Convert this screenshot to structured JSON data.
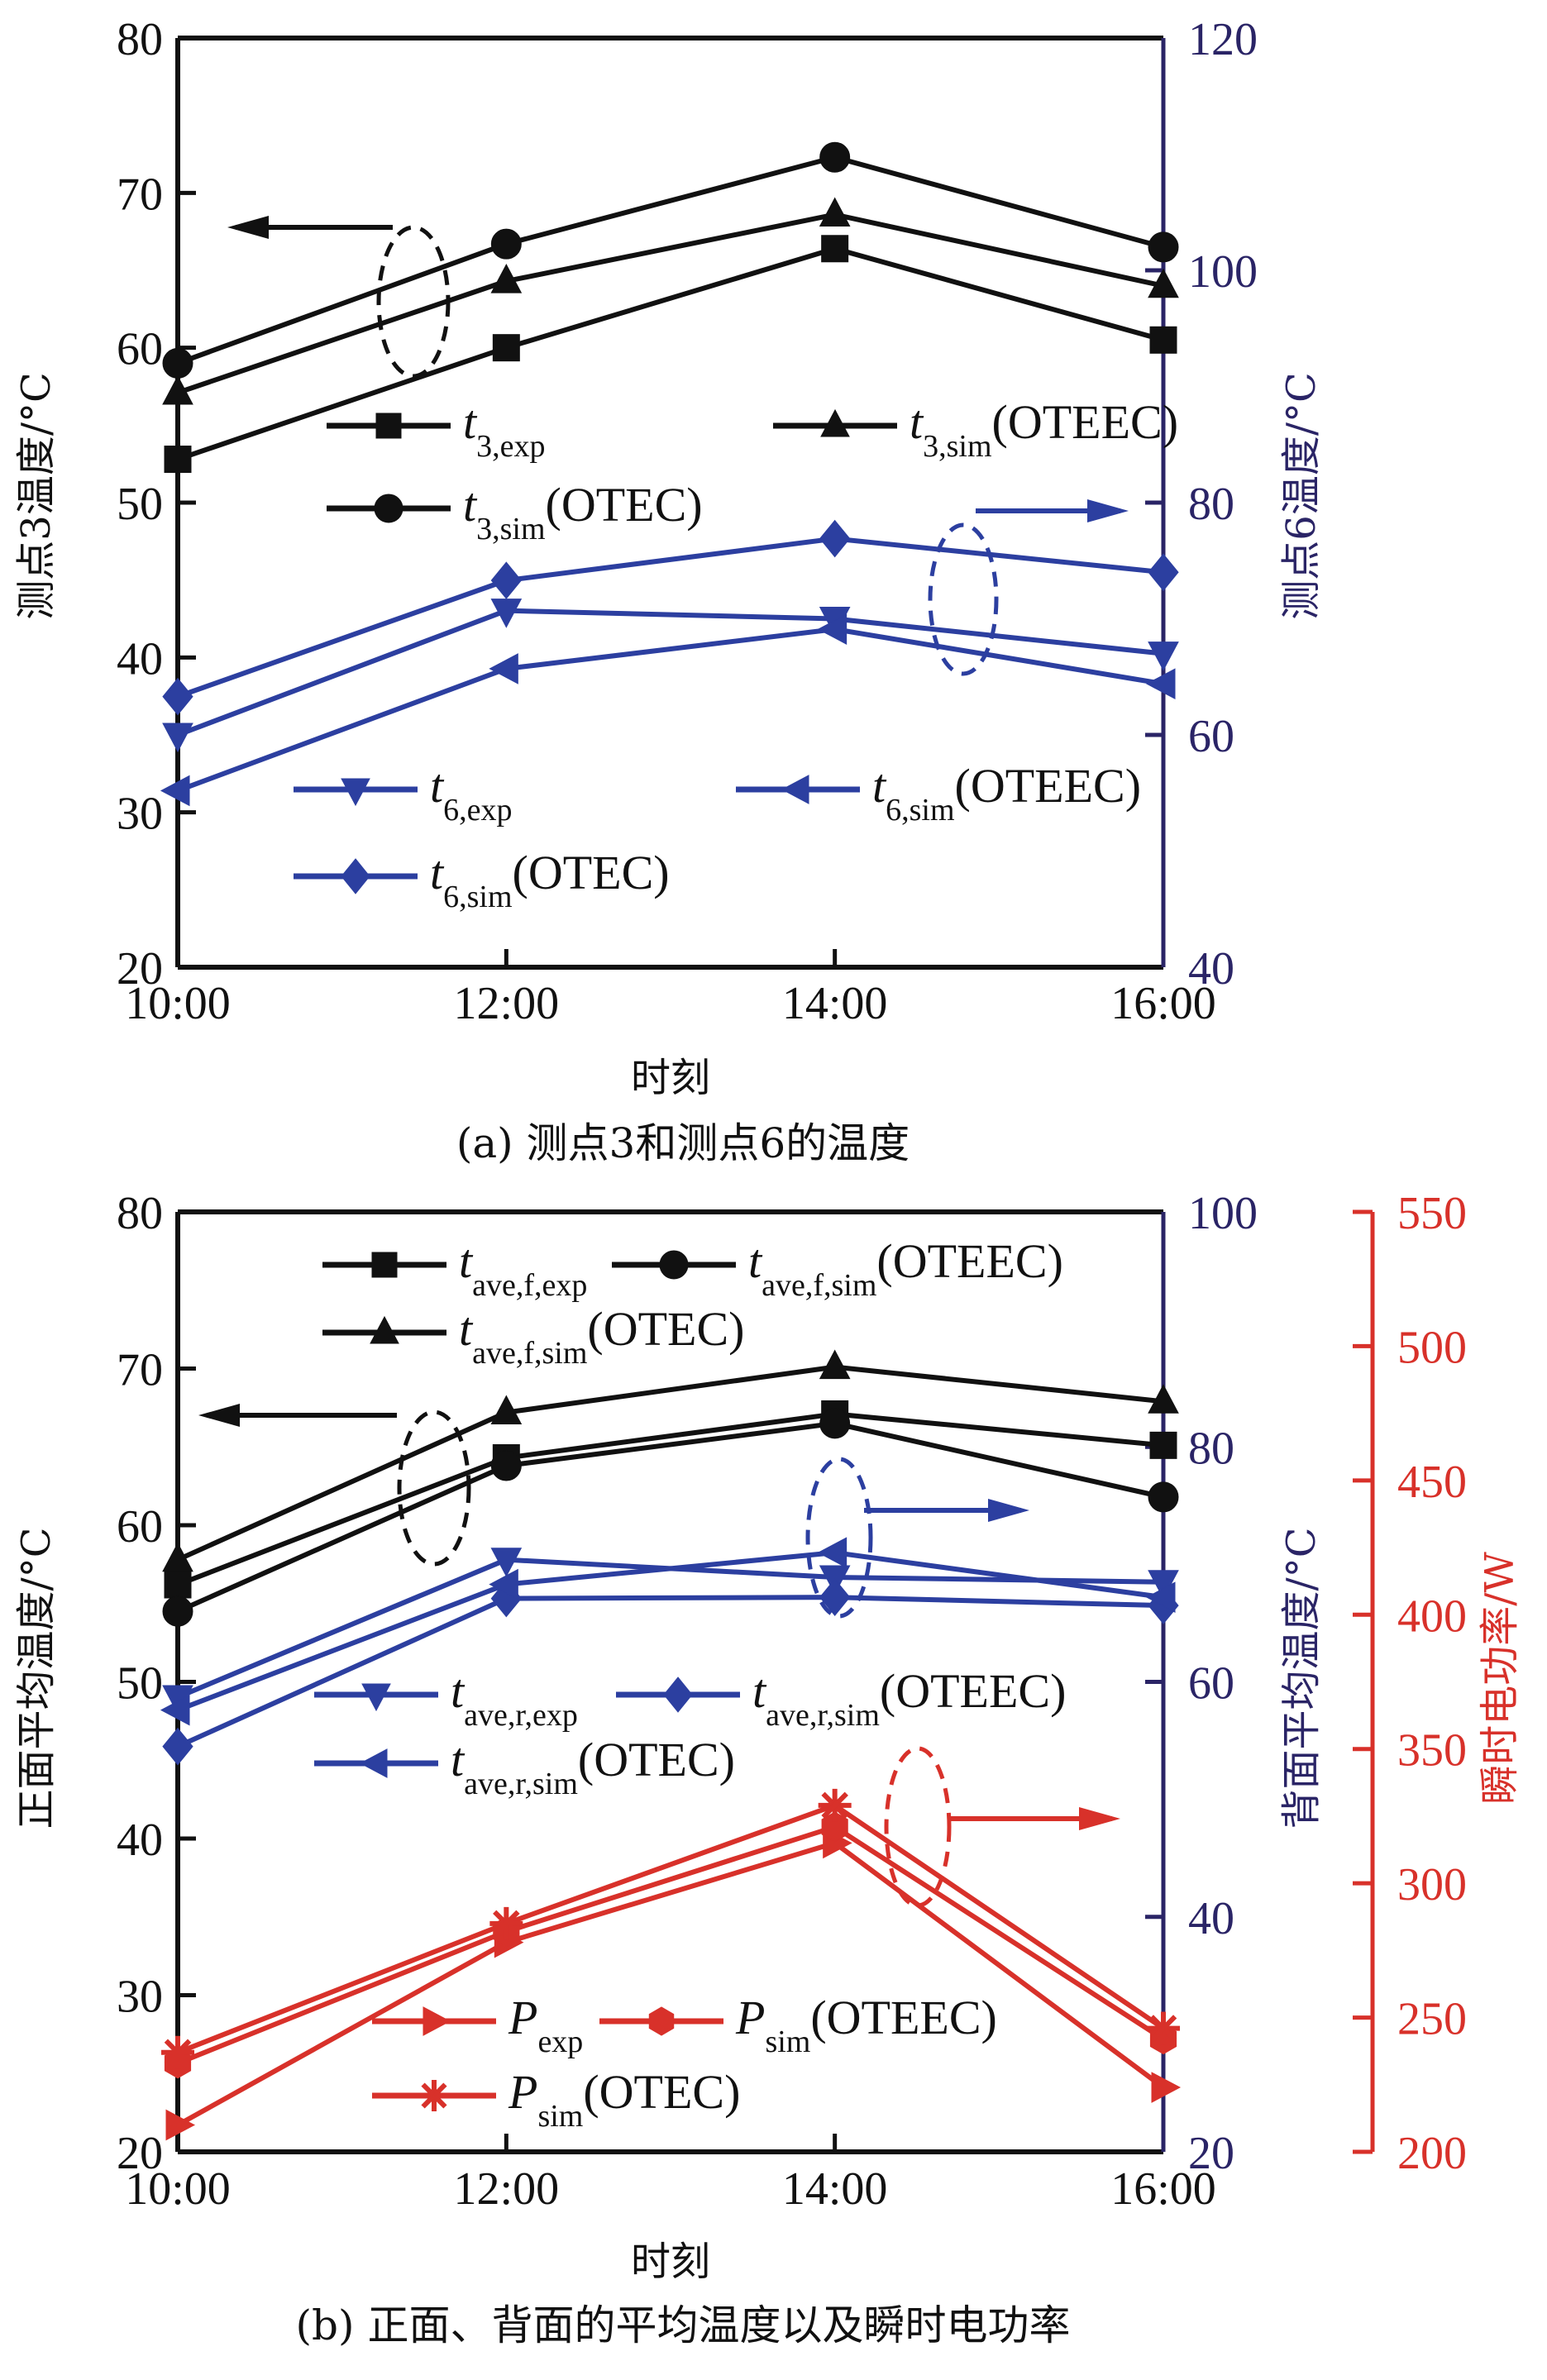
{
  "colors": {
    "black": "#111111",
    "blue": "#2c3fa0",
    "navy_axis": "#2a2466",
    "red": "#d8312a"
  },
  "chart_data": [
    {
      "id": "a",
      "type": "line",
      "caption": "(a) 测点3和测点6的温度",
      "xlabel": "时刻",
      "categories": [
        "10:00",
        "12:00",
        "14:00",
        "16:00"
      ],
      "axes": {
        "left": {
          "label": "测点3温度/°C",
          "range": [
            20,
            80
          ],
          "ticks": [
            20,
            30,
            40,
            50,
            60,
            70,
            80
          ],
          "color": "black"
        },
        "right": {
          "label": "测点6温度/°C",
          "range": [
            40,
            120
          ],
          "ticks": [
            40,
            60,
            80,
            100,
            120
          ],
          "color": "navy_axis"
        }
      },
      "series": [
        {
          "name": "t3,exp",
          "base": "t",
          "sub": "3,exp",
          "suffix": "",
          "axis": "left",
          "color": "black",
          "marker": "square",
          "values": [
            52.8,
            60.0,
            66.4,
            60.5
          ]
        },
        {
          "name": "t3,sim(OTEEC)",
          "base": "t",
          "sub": "3,sim",
          "suffix": "(OTEEC)",
          "axis": "left",
          "color": "black",
          "marker": "triangle-up",
          "values": [
            57.1,
            64.3,
            68.6,
            64.0
          ]
        },
        {
          "name": "t3,sim(OTEC)",
          "base": "t",
          "sub": "3,sim",
          "suffix": "(OTEC)",
          "axis": "left",
          "color": "black",
          "marker": "circle",
          "values": [
            59.0,
            66.7,
            72.3,
            66.5
          ]
        },
        {
          "name": "t6,exp",
          "base": "t",
          "sub": "6,exp",
          "suffix": "",
          "axis": "right",
          "color": "blue",
          "marker": "triangle-down",
          "values": [
            60.0,
            70.7,
            70.0,
            67.0
          ]
        },
        {
          "name": "t6,sim(OTEEC)",
          "base": "t",
          "sub": "6,sim",
          "suffix": "(OTEEC)",
          "axis": "right",
          "color": "blue",
          "marker": "triangle-left",
          "values": [
            55.2,
            65.7,
            69.1,
            64.4
          ]
        },
        {
          "name": "t6,sim(OTEC)",
          "base": "t",
          "sub": "6,sim",
          "suffix": "(OTEC)",
          "axis": "right",
          "color": "blue",
          "marker": "diamond",
          "values": [
            63.3,
            73.3,
            76.9,
            74.0
          ]
        }
      ],
      "annotations": [
        {
          "type": "ellipse-arrow",
          "group": "black series",
          "points_to": "left axis",
          "color": "black"
        },
        {
          "type": "ellipse-arrow",
          "group": "blue series",
          "points_to": "right axis",
          "color": "blue"
        }
      ],
      "grid": false
    },
    {
      "id": "b",
      "type": "line",
      "caption": "(b) 正面、背面的平均温度以及瞬时电功率",
      "xlabel": "时刻",
      "categories": [
        "10:00",
        "12:00",
        "14:00",
        "16:00"
      ],
      "axes": {
        "left": {
          "label": "正面平均温度/°C",
          "range": [
            20,
            80
          ],
          "ticks": [
            20,
            30,
            40,
            50,
            60,
            70,
            80
          ],
          "color": "black"
        },
        "right": {
          "label": "背面平均温度/°C",
          "range": [
            20,
            100
          ],
          "ticks": [
            20,
            40,
            60,
            80,
            100
          ],
          "color": "navy_axis"
        },
        "right2": {
          "label": "瞬时电功率/W",
          "range": [
            200,
            550
          ],
          "ticks": [
            200,
            250,
            300,
            350,
            400,
            450,
            500,
            550
          ],
          "color": "red"
        }
      },
      "series": [
        {
          "name": "tave,f,exp",
          "base": "t",
          "sub": "ave,f,exp",
          "suffix": "",
          "axis": "left",
          "color": "black",
          "marker": "square",
          "values": [
            56.2,
            64.3,
            67.1,
            65.1
          ]
        },
        {
          "name": "tave,f,sim(OTEEC)",
          "base": "t",
          "sub": "ave,f,sim",
          "suffix": "(OTEEC)",
          "axis": "left",
          "color": "black",
          "marker": "circle",
          "values": [
            54.5,
            63.8,
            66.5,
            61.8
          ]
        },
        {
          "name": "tave,f,sim(OTEC)",
          "base": "t",
          "sub": "ave,f,sim",
          "suffix": "(OTEC)",
          "axis": "left",
          "color": "black",
          "marker": "triangle-up",
          "values": [
            57.8,
            67.2,
            70.1,
            67.9
          ]
        },
        {
          "name": "tave,r,exp",
          "base": "t",
          "sub": "ave,r,exp",
          "suffix": "",
          "axis": "right",
          "color": "blue",
          "marker": "triangle-down",
          "values": [
            58.7,
            70.4,
            68.9,
            68.5
          ]
        },
        {
          "name": "tave,r,sim(OTEEC)",
          "base": "t",
          "sub": "ave,r,sim",
          "suffix": "(OTEEC)",
          "axis": "right",
          "color": "blue",
          "marker": "diamond",
          "values": [
            54.5,
            67.1,
            67.2,
            66.5
          ]
        },
        {
          "name": "tave,r,sim(OTEC)",
          "base": "t",
          "sub": "ave,r,sim",
          "suffix": "(OTEC)",
          "axis": "right",
          "color": "blue",
          "marker": "triangle-left",
          "values": [
            57.6,
            68.3,
            71.0,
            67.2
          ]
        },
        {
          "name": "Pexp",
          "base": "P",
          "sub": "exp",
          "suffix": "",
          "axis": "right2",
          "color": "red",
          "marker": "triangle-right",
          "values": [
            210,
            278,
            315,
            224
          ]
        },
        {
          "name": "Psim(OTEEC)",
          "base": "P",
          "sub": "sim",
          "suffix": "(OTEEC)",
          "axis": "right2",
          "color": "red",
          "marker": "hexagon",
          "values": [
            233,
            282,
            321,
            242
          ]
        },
        {
          "name": "Psim(OTEC)",
          "base": "P",
          "sub": "sim",
          "suffix": "(OTEC)",
          "axis": "right2",
          "color": "red",
          "marker": "star",
          "values": [
            237,
            285,
            329,
            246
          ]
        }
      ],
      "annotations": [
        {
          "type": "ellipse-arrow",
          "group": "black series",
          "points_to": "left axis",
          "color": "black"
        },
        {
          "type": "ellipse-arrow",
          "group": "blue series",
          "points_to": "right axis",
          "color": "blue"
        },
        {
          "type": "ellipse-arrow",
          "group": "red series",
          "points_to": "power axis",
          "color": "red"
        }
      ],
      "grid": false
    }
  ]
}
